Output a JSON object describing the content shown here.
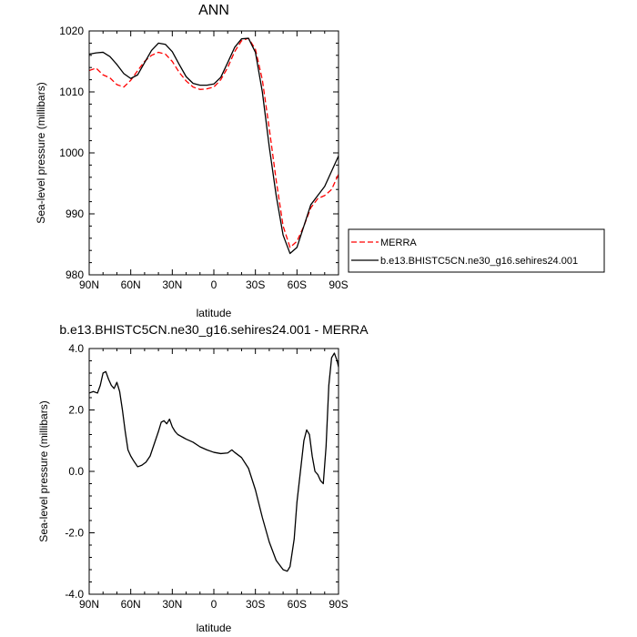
{
  "chart_data": [
    {
      "type": "line",
      "title": "ANN",
      "xlabel": "latitude",
      "ylabel": "Sea-level pressure (millibars)",
      "xticks": [
        "90N",
        "60N",
        "30N",
        "0",
        "30S",
        "60S",
        "90S"
      ],
      "xlim": [
        90,
        -90
      ],
      "ylim": [
        980,
        1020
      ],
      "yticks": [
        "980",
        "990",
        "1000",
        "1010",
        "1020"
      ],
      "legend_position": "right",
      "series": [
        {
          "name": "MERRA",
          "color": "#ff0000",
          "style": "dashed",
          "x": [
            90,
            85,
            80,
            75,
            70,
            65,
            60,
            55,
            50,
            45,
            40,
            35,
            30,
            25,
            20,
            15,
            10,
            5,
            0,
            -5,
            -10,
            -15,
            -20,
            -25,
            -30,
            -35,
            -40,
            -45,
            -50,
            -55,
            -60,
            -65,
            -70,
            -75,
            -80,
            -85,
            -90
          ],
          "y": [
            1013.5,
            1013.9,
            1012.8,
            1012.3,
            1011.2,
            1010.8,
            1011.9,
            1013.5,
            1015.0,
            1016.0,
            1016.5,
            1016.2,
            1015.0,
            1013.2,
            1011.8,
            1010.8,
            1010.4,
            1010.5,
            1010.8,
            1012.0,
            1014.0,
            1016.6,
            1018.4,
            1018.8,
            1017.0,
            1012.0,
            1004.0,
            995.5,
            988.0,
            984.5,
            985.5,
            988.0,
            991.0,
            992.5,
            993.0,
            994.0,
            996.5
          ]
        },
        {
          "name": "b.e13.BHISTC5CN.ne30_g16.sehires24.001",
          "color": "#000000",
          "style": "solid",
          "x": [
            90,
            85,
            80,
            75,
            70,
            65,
            60,
            55,
            50,
            45,
            40,
            35,
            30,
            25,
            20,
            15,
            10,
            5,
            0,
            -5,
            -10,
            -15,
            -20,
            -25,
            -30,
            -35,
            -40,
            -45,
            -50,
            -55,
            -60,
            -65,
            -70,
            -75,
            -80,
            -85,
            -90
          ],
          "y": [
            1016.2,
            1016.4,
            1016.5,
            1015.8,
            1014.5,
            1013.0,
            1012.2,
            1012.8,
            1014.8,
            1016.8,
            1018.0,
            1017.8,
            1016.6,
            1014.5,
            1012.5,
            1011.4,
            1011.1,
            1011.1,
            1011.3,
            1012.4,
            1014.8,
            1017.3,
            1018.7,
            1018.8,
            1016.5,
            1010.0,
            1001.0,
            993.0,
            986.5,
            983.5,
            984.5,
            988.0,
            991.5,
            993.0,
            994.5,
            997.0,
            999.5
          ]
        }
      ]
    },
    {
      "type": "line",
      "title": "b.e13.BHISTC5CN.ne30_g16.sehires24.001 - MERRA",
      "xlabel": "latitude",
      "ylabel": "Sea-level pressure (millibars)",
      "xticks": [
        "90N",
        "60N",
        "30N",
        "0",
        "30S",
        "60S",
        "90S"
      ],
      "xlim": [
        90,
        -90
      ],
      "ylim": [
        -4,
        4
      ],
      "yticks": [
        "-4.0",
        "-2.0",
        "0.0",
        "2.0",
        "4.0"
      ],
      "series": [
        {
          "color": "#000000",
          "style": "solid",
          "x": [
            90,
            87,
            84,
            82,
            80,
            78,
            76,
            74,
            72,
            70,
            68,
            66,
            64,
            62,
            60,
            58,
            55,
            52,
            49,
            46,
            43,
            40,
            38,
            36,
            34,
            32,
            30,
            28,
            26,
            24,
            22,
            20,
            15,
            10,
            5,
            0,
            -5,
            -10,
            -13,
            -15,
            -20,
            -25,
            -30,
            -35,
            -40,
            -45,
            -50,
            -53,
            -55,
            -58,
            -60,
            -63,
            -65,
            -67,
            -69,
            -71,
            -73,
            -75,
            -77,
            -79,
            -81,
            -83,
            -85,
            -87,
            -89,
            -90
          ],
          "y": [
            2.55,
            2.6,
            2.55,
            2.8,
            3.2,
            3.25,
            3.0,
            2.8,
            2.7,
            2.9,
            2.6,
            2.0,
            1.3,
            0.7,
            0.5,
            0.35,
            0.15,
            0.2,
            0.3,
            0.5,
            0.9,
            1.3,
            1.6,
            1.65,
            1.55,
            1.7,
            1.45,
            1.3,
            1.2,
            1.15,
            1.1,
            1.05,
            0.95,
            0.8,
            0.7,
            0.62,
            0.58,
            0.6,
            0.7,
            0.62,
            0.45,
            0.1,
            -0.6,
            -1.5,
            -2.3,
            -2.9,
            -3.2,
            -3.25,
            -3.1,
            -2.2,
            -1.0,
            0.2,
            1.0,
            1.35,
            1.2,
            0.5,
            0.0,
            -0.1,
            -0.3,
            -0.4,
            0.8,
            2.8,
            3.7,
            3.85,
            3.6,
            3.4
          ]
        }
      ]
    }
  ]
}
